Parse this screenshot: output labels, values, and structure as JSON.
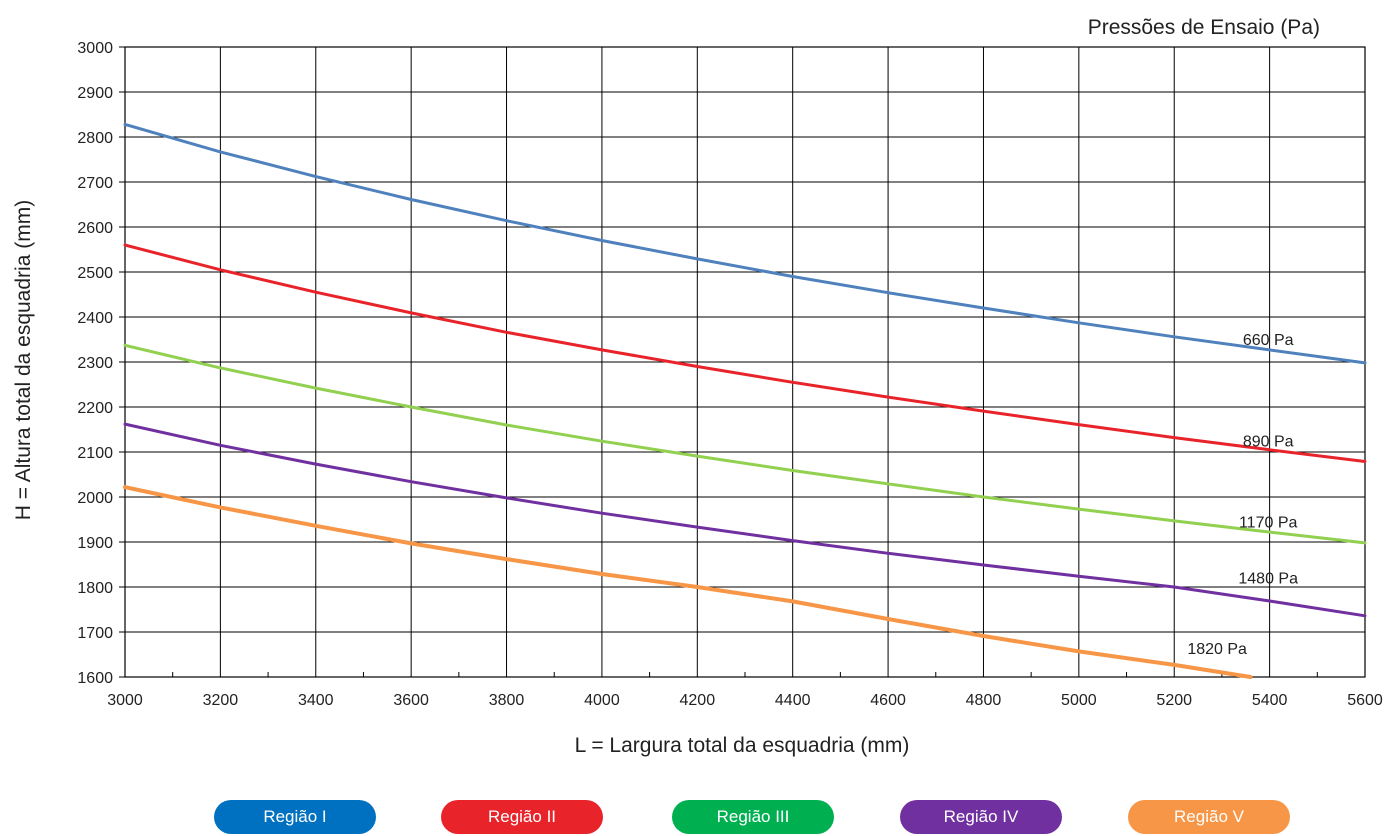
{
  "chart_data": {
    "type": "line",
    "title": "Pressões de Ensaio (Pa)",
    "xlabel": "L = Largura total da esquadria (mm)",
    "ylabel": "H = Altura total da esquadria (mm)",
    "xlim": [
      3000,
      5600
    ],
    "ylim": [
      1600,
      3000
    ],
    "x_ticks": [
      3000,
      3200,
      3400,
      3600,
      3800,
      4000,
      4200,
      4400,
      4600,
      4800,
      5000,
      5200,
      5400,
      5600
    ],
    "y_ticks": [
      1600,
      1700,
      1800,
      1900,
      2000,
      2100,
      2200,
      2300,
      2400,
      2500,
      2600,
      2700,
      2800,
      2900,
      3000
    ],
    "grid": true,
    "series": [
      {
        "name": "660 Pa",
        "color": "#4f81bd",
        "points": [
          [
            3000,
            2828
          ],
          [
            3200,
            2767
          ],
          [
            3400,
            2712
          ],
          [
            3600,
            2661
          ],
          [
            3800,
            2614
          ],
          [
            4000,
            2570
          ],
          [
            4200,
            2529
          ],
          [
            4400,
            2490
          ],
          [
            4600,
            2454
          ],
          [
            4800,
            2420
          ],
          [
            5000,
            2387
          ],
          [
            5200,
            2356
          ],
          [
            5400,
            2327
          ],
          [
            5600,
            2298
          ]
        ]
      },
      {
        "name": "890 Pa",
        "color": "#e8232a",
        "points": [
          [
            3000,
            2560
          ],
          [
            3200,
            2505
          ],
          [
            3400,
            2455
          ],
          [
            3600,
            2409
          ],
          [
            3800,
            2366
          ],
          [
            4000,
            2327
          ],
          [
            4200,
            2290
          ],
          [
            4400,
            2255
          ],
          [
            4600,
            2222
          ],
          [
            4800,
            2191
          ],
          [
            5000,
            2161
          ],
          [
            5200,
            2132
          ],
          [
            5400,
            2105
          ],
          [
            5600,
            2079
          ]
        ]
      },
      {
        "name": "1170 Pa",
        "color": "#92d050",
        "points": [
          [
            3000,
            2337
          ],
          [
            3200,
            2287
          ],
          [
            3400,
            2242
          ],
          [
            3600,
            2200
          ],
          [
            3800,
            2160
          ],
          [
            4000,
            2124
          ],
          [
            4200,
            2091
          ],
          [
            4400,
            2059
          ],
          [
            4600,
            2029
          ],
          [
            4800,
            2000
          ],
          [
            5000,
            1973
          ],
          [
            5200,
            1947
          ],
          [
            5400,
            1922
          ],
          [
            5600,
            1898
          ]
        ]
      },
      {
        "name": "1480 Pa",
        "color": "#7030a0",
        "points": [
          [
            3000,
            2162
          ],
          [
            3200,
            2115
          ],
          [
            3400,
            2073
          ],
          [
            3600,
            2034
          ],
          [
            3800,
            1998
          ],
          [
            4000,
            1964
          ],
          [
            4200,
            1933
          ],
          [
            4400,
            1903
          ],
          [
            4600,
            1875
          ],
          [
            4800,
            1849
          ],
          [
            5000,
            1824
          ],
          [
            5200,
            1800
          ],
          [
            5400,
            1769
          ],
          [
            5600,
            1736
          ]
        ]
      },
      {
        "name": "1820 Pa",
        "color": "#f79646",
        "points": [
          [
            3000,
            2022
          ],
          [
            3200,
            1977
          ],
          [
            3400,
            1936
          ],
          [
            3600,
            1897
          ],
          [
            3800,
            1862
          ],
          [
            4000,
            1829
          ],
          [
            4200,
            1800
          ],
          [
            4400,
            1768
          ],
          [
            4600,
            1729
          ],
          [
            4800,
            1691
          ],
          [
            5000,
            1657
          ],
          [
            5200,
            1627
          ],
          [
            5360,
            1600
          ]
        ]
      }
    ],
    "legend_position": "bottom"
  },
  "legend": [
    {
      "label": "Região I",
      "color": "#0070c0"
    },
    {
      "label": "Região II",
      "color": "#e8232a"
    },
    {
      "label": "Região III",
      "color": "#00b050"
    },
    {
      "label": "Região IV",
      "color": "#7030a0"
    },
    {
      "label": "Região V",
      "color": "#f79646"
    }
  ]
}
